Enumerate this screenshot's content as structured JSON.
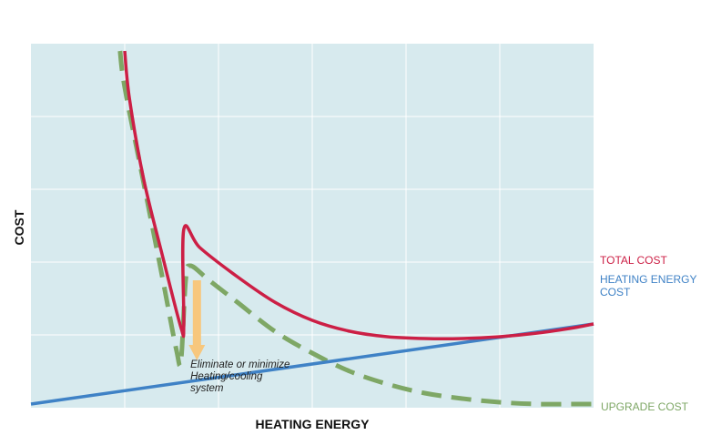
{
  "chart_data": {
    "type": "line",
    "title": "",
    "xlabel": "HEATING ENERGY",
    "ylabel": "COST",
    "grid": true,
    "axis_ticks": false,
    "background": "#d7eaee",
    "series": [
      {
        "name": "TOTAL COST",
        "color": "#cc1f45",
        "style": "solid",
        "x": [
          1.0,
          1.05,
          1.2,
          1.4,
          1.6,
          1.63,
          1.63,
          1.8,
          2.2,
          2.6,
          3.0,
          3.4,
          3.8,
          4.2,
          4.6,
          5.0,
          5.4,
          5.8,
          6.0
        ],
        "y": [
          9.8,
          8.5,
          6.3,
          4.2,
          2.2,
          2.3,
          4.9,
          4.4,
          3.6,
          2.9,
          2.4,
          2.1,
          1.95,
          1.9,
          1.9,
          1.95,
          2.05,
          2.2,
          2.3
        ]
      },
      {
        "name": "HEATING ENERGY COST",
        "color": "#3f82c6",
        "style": "solid",
        "x": [
          0.0,
          6.0
        ],
        "y": [
          0.1,
          2.3
        ]
      },
      {
        "name": "UPGRADE COST",
        "color": "#7ea765",
        "style": "dashed",
        "x": [
          0.95,
          1.0,
          1.2,
          1.4,
          1.55,
          1.6,
          1.65,
          1.7,
          1.9,
          2.2,
          2.6,
          3.0,
          3.4,
          3.8,
          4.2,
          4.6,
          5.0,
          5.4,
          5.8,
          6.0
        ],
        "y": [
          9.8,
          8.8,
          6.2,
          3.6,
          1.6,
          1.3,
          3.5,
          3.9,
          3.5,
          2.9,
          2.1,
          1.5,
          1.0,
          0.65,
          0.4,
          0.25,
          0.15,
          0.1,
          0.1,
          0.1
        ]
      }
    ],
    "xlim": [
      0,
      6
    ],
    "ylim": [
      0,
      10
    ],
    "annotations": [
      {
        "text_lines": [
          "Eliminate or minimize",
          "Heating/cooling",
          "system"
        ],
        "x": 1.7,
        "y": 1.1
      }
    ],
    "arrow": {
      "color": "#f7c77d",
      "direction": "down",
      "x": 1.77,
      "y_from": 3.5,
      "y_to": 1.3
    }
  }
}
